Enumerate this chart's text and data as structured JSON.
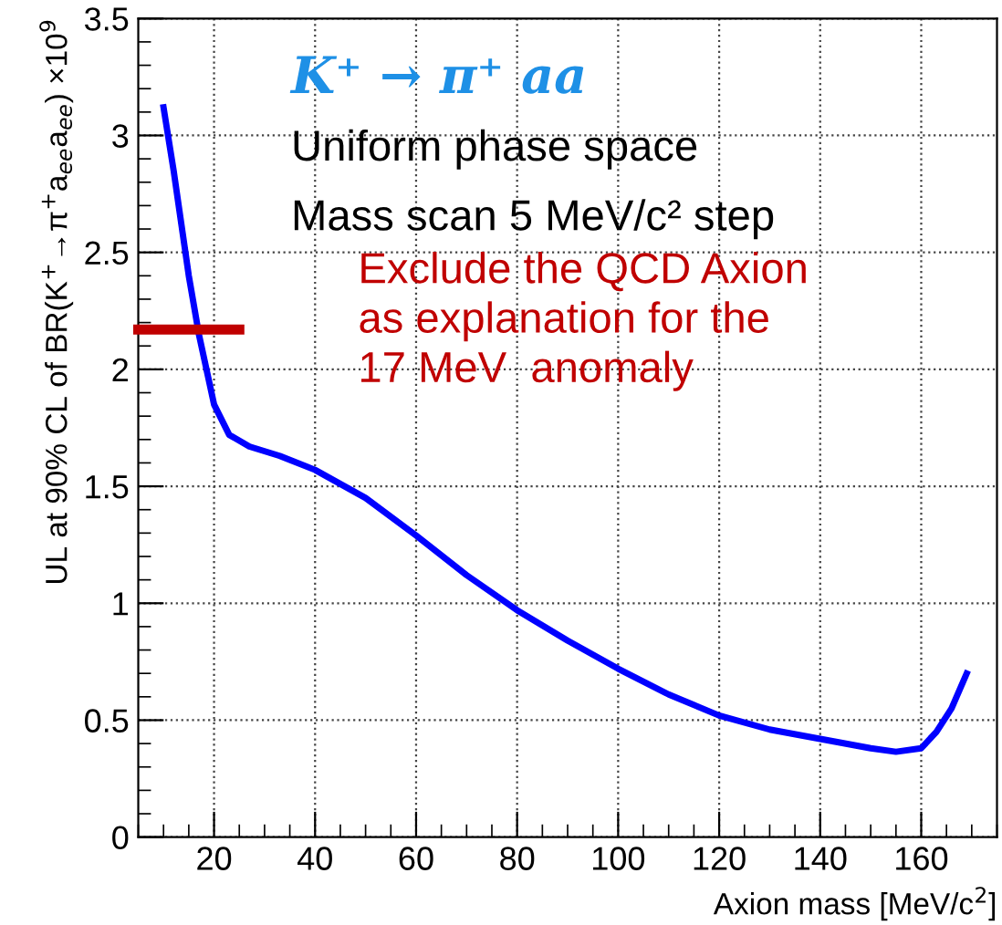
{
  "chart_data": {
    "type": "line",
    "xlabel": "Axion mass [MeV/c$^{2}$]",
    "ylabel": "UL at 90% CL of BR(K$^{+}$→π$^{+}$a$_{ee}$a$_{ee}$) ×10$^{9}$",
    "series": [
      {
        "color": "#0000ff",
        "x": [
          10,
          12,
          15,
          17,
          20,
          23,
          27,
          33,
          40,
          50,
          60,
          70,
          80,
          90,
          100,
          110,
          120,
          130,
          140,
          150,
          155,
          160,
          163,
          166,
          169
        ],
        "values": [
          3.12,
          2.85,
          2.4,
          2.15,
          1.85,
          1.72,
          1.67,
          1.63,
          1.57,
          1.45,
          1.29,
          1.12,
          0.97,
          0.84,
          0.72,
          0.61,
          0.52,
          0.46,
          0.42,
          0.38,
          0.365,
          0.38,
          0.45,
          0.55,
          0.7
        ]
      },
      {
        "color": "#c00000",
        "x": [
          5,
          25
        ],
        "values": [
          2.17,
          2.17
        ]
      }
    ],
    "annotations": [
      "K⁺ → π⁺ aa",
      "Uniform phase space",
      "Mass scan 5 MeV/c² step",
      "Exclude the QCD Axion\nas explanation for the\n17 MeV  anomaly"
    ],
    "xlim": [
      5,
      175
    ],
    "xticks": [
      20,
      40,
      60,
      80,
      100,
      120,
      140,
      160
    ],
    "ylim": [
      0,
      3.5
    ],
    "yticks": [
      0,
      0.5,
      1,
      1.5,
      2,
      2.5,
      3,
      3.5
    ],
    "grid": true,
    "legend": false,
    "marker": "none",
    "line_style": "solid"
  }
}
